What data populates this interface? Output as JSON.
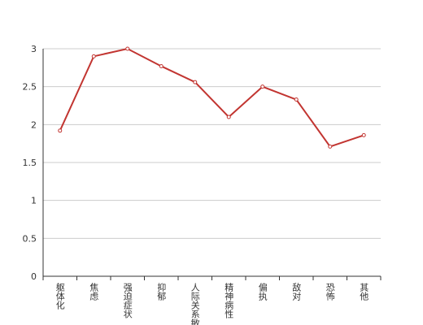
{
  "chart_data": {
    "type": "line",
    "categories": [
      "躯体化",
      "焦虑",
      "强迫症状",
      "抑郁",
      "人际关系敏",
      "精神病性",
      "偏执",
      "敌对",
      "恐怖",
      "其他"
    ],
    "series": [
      {
        "color": "#c23531",
        "values": [
          1.92,
          2.9,
          3.0,
          2.77,
          2.56,
          2.1,
          2.5,
          2.33,
          1.71,
          1.86
        ]
      }
    ],
    "ylim": [
      0,
      3
    ],
    "yticks": [
      0,
      0.5,
      1,
      1.5,
      2,
      2.5,
      3
    ],
    "grid": true
  }
}
